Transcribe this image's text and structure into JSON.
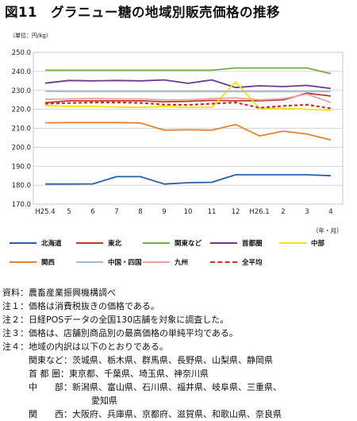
{
  "title": "図11　グラニュー糖の地域別販売価格の推移",
  "unit_label": "（単位：円/kg）",
  "axis_note": "（年・月）",
  "chart_data": {
    "type": "line",
    "categories": [
      "H25.4",
      "5",
      "6",
      "7",
      "8",
      "9",
      "10",
      "11",
      "12",
      "H26.1",
      "2",
      "3",
      "4"
    ],
    "ylim": [
      170,
      250
    ],
    "y_ticks": [
      "170.0",
      "180.0",
      "190.0",
      "200.0",
      "210.0",
      "220.0",
      "230.0",
      "240.0",
      "250.0"
    ],
    "grid": true,
    "legend_position": "bottom",
    "series": [
      {
        "name": "北海道",
        "color": "#2b5fa8",
        "dash": "solid",
        "values": [
          180.6,
          180.6,
          180.7,
          184.5,
          184.5,
          180.6,
          181.3,
          181.5,
          185.5,
          185.5,
          185.5,
          185.5,
          185.0
        ]
      },
      {
        "name": "東北",
        "color": "#c0392b",
        "dash": "solid",
        "values": [
          223.5,
          224.5,
          224.5,
          224.5,
          224.5,
          224.0,
          224.2,
          224.7,
          224.5,
          224.5,
          225.0,
          228.5,
          227.0
        ]
      },
      {
        "name": "関東など",
        "color": "#77ab43",
        "dash": "solid",
        "values": [
          240.6,
          240.6,
          240.6,
          240.6,
          240.6,
          240.6,
          240.6,
          240.6,
          241.8,
          241.8,
          241.8,
          241.8,
          238.8
        ]
      },
      {
        "name": "首都圏",
        "color": "#6b3a8e",
        "dash": "solid",
        "values": [
          233.8,
          235.2,
          235.0,
          235.2,
          235.0,
          235.5,
          233.7,
          235.5,
          231.5,
          232.4,
          232.0,
          232.6,
          231.0
        ]
      },
      {
        "name": "中部",
        "color": "#f5e400",
        "dash": "solid",
        "values": [
          222.0,
          221.5,
          221.5,
          221.2,
          221.0,
          221.5,
          221.0,
          221.0,
          234.5,
          220.5,
          220.5,
          220.0,
          219.5
        ]
      },
      {
        "name": "関西",
        "color": "#e8832c",
        "dash": "solid",
        "values": [
          212.9,
          213.0,
          213.0,
          213.0,
          212.8,
          209.0,
          209.2,
          209.0,
          212.0,
          206.0,
          208.5,
          207.0,
          203.8
        ]
      },
      {
        "name": "中国・四国",
        "color": "#9bbad6",
        "dash": "solid",
        "values": [
          229.5,
          229.4,
          229.4,
          229.4,
          229.4,
          229.4,
          229.4,
          229.4,
          229.4,
          229.4,
          229.4,
          229.4,
          229.4
        ]
      },
      {
        "name": "九州",
        "color": "#e8a5a0",
        "dash": "solid",
        "values": [
          225.3,
          225.5,
          225.7,
          225.5,
          225.5,
          225.0,
          225.0,
          225.7,
          226.0,
          225.0,
          225.6,
          228.0,
          223.6
        ]
      },
      {
        "name": "全平均",
        "color": "#d62b2b",
        "dash": "dashed",
        "values": [
          223.0,
          223.3,
          223.6,
          223.6,
          223.4,
          222.5,
          222.3,
          223.0,
          223.6,
          220.8,
          221.8,
          222.4,
          220.5
        ]
      }
    ]
  },
  "notes": [
    "資料：農畜産業振興機構調べ",
    "注１：価格は消費税抜きの価格である。",
    "注２：日経POSデータの全国130店舗を対象に調査した。",
    "注３：価格は、店舗別商品別の最高価格の単純平均である。",
    "注４：地域の内訳は以下のとおりである。",
    "関東など：茨城県、栃木県、群馬県、長野県、山梨県、静岡県",
    "首 都 圏：東京都、千葉県、埼玉県、神奈川県",
    "中　　部：新潟県、富山県、石川県、福井県、岐阜県、三重県、",
    "愛知県",
    "関　　西：大阪府、兵庫県、京都府、滋賀県、和歌山県、奈良県"
  ]
}
